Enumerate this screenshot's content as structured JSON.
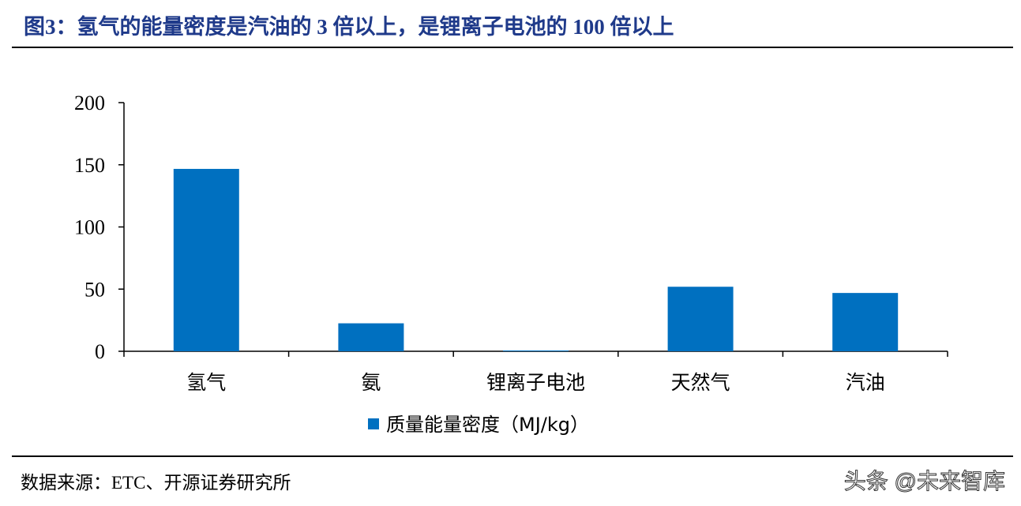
{
  "title": "图3：氢气的能量密度是汽油的 3 倍以上，是锂离子电池的 100 倍以上",
  "source": "数据来源：ETC、开源证券研究所",
  "watermark": "头条 @未来智库",
  "colors": {
    "bar": "#0070c0",
    "title": "#1f3a8a",
    "axis": "#000000"
  },
  "chart_data": {
    "type": "bar",
    "categories": [
      "氢气",
      "氨",
      "锂离子电池",
      "天然气",
      "汽油"
    ],
    "series": [
      {
        "name": "质量能量密度（MJ/kg）",
        "values": [
          146.7,
          22.5,
          0.6,
          51.9,
          46.9
        ]
      }
    ],
    "ylim": [
      0,
      200
    ],
    "yticks": [
      0,
      50,
      100,
      150,
      200
    ],
    "grid": false,
    "legend": "bottom"
  }
}
